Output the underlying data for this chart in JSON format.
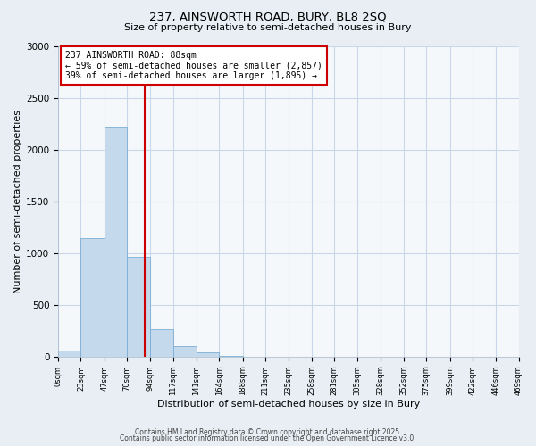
{
  "title": "237, AINSWORTH ROAD, BURY, BL8 2SQ",
  "subtitle": "Size of property relative to semi-detached houses in Bury",
  "xlabel": "Distribution of semi-detached houses by size in Bury",
  "ylabel": "Number of semi-detached properties",
  "bar_edges": [
    0,
    23,
    47,
    70,
    94,
    117,
    141,
    164,
    188,
    211,
    235,
    258,
    281,
    305,
    328,
    352,
    375,
    399,
    422,
    446,
    469
  ],
  "bar_heights": [
    55,
    1140,
    2220,
    960,
    265,
    105,
    40,
    10,
    0,
    0,
    0,
    0,
    0,
    0,
    0,
    0,
    0,
    0,
    0,
    0
  ],
  "bar_color": "#c5d9ed",
  "bar_edgecolor": "#7aaed6",
  "vline_x": 88,
  "vline_color": "#cc0000",
  "annotation_title": "237 AINSWORTH ROAD: 88sqm",
  "annotation_line1": "← 59% of semi-detached houses are smaller (2,857)",
  "annotation_line2": "39% of semi-detached houses are larger (1,895) →",
  "annotation_box_color": "#cc0000",
  "annotation_bg": "#ffffff",
  "ylim": [
    0,
    3000
  ],
  "yticks": [
    0,
    500,
    1000,
    1500,
    2000,
    2500,
    3000
  ],
  "tick_labels": [
    "0sqm",
    "23sqm",
    "47sqm",
    "70sqm",
    "94sqm",
    "117sqm",
    "141sqm",
    "164sqm",
    "188sqm",
    "211sqm",
    "235sqm",
    "258sqm",
    "281sqm",
    "305sqm",
    "328sqm",
    "352sqm",
    "375sqm",
    "399sqm",
    "422sqm",
    "446sqm",
    "469sqm"
  ],
  "footer1": "Contains HM Land Registry data © Crown copyright and database right 2025.",
  "footer2": "Contains public sector information licensed under the Open Government Licence v3.0.",
  "bg_color": "#e8eef4",
  "plot_bg_color": "#f5f8fb",
  "grid_color": "#c8d8e8"
}
